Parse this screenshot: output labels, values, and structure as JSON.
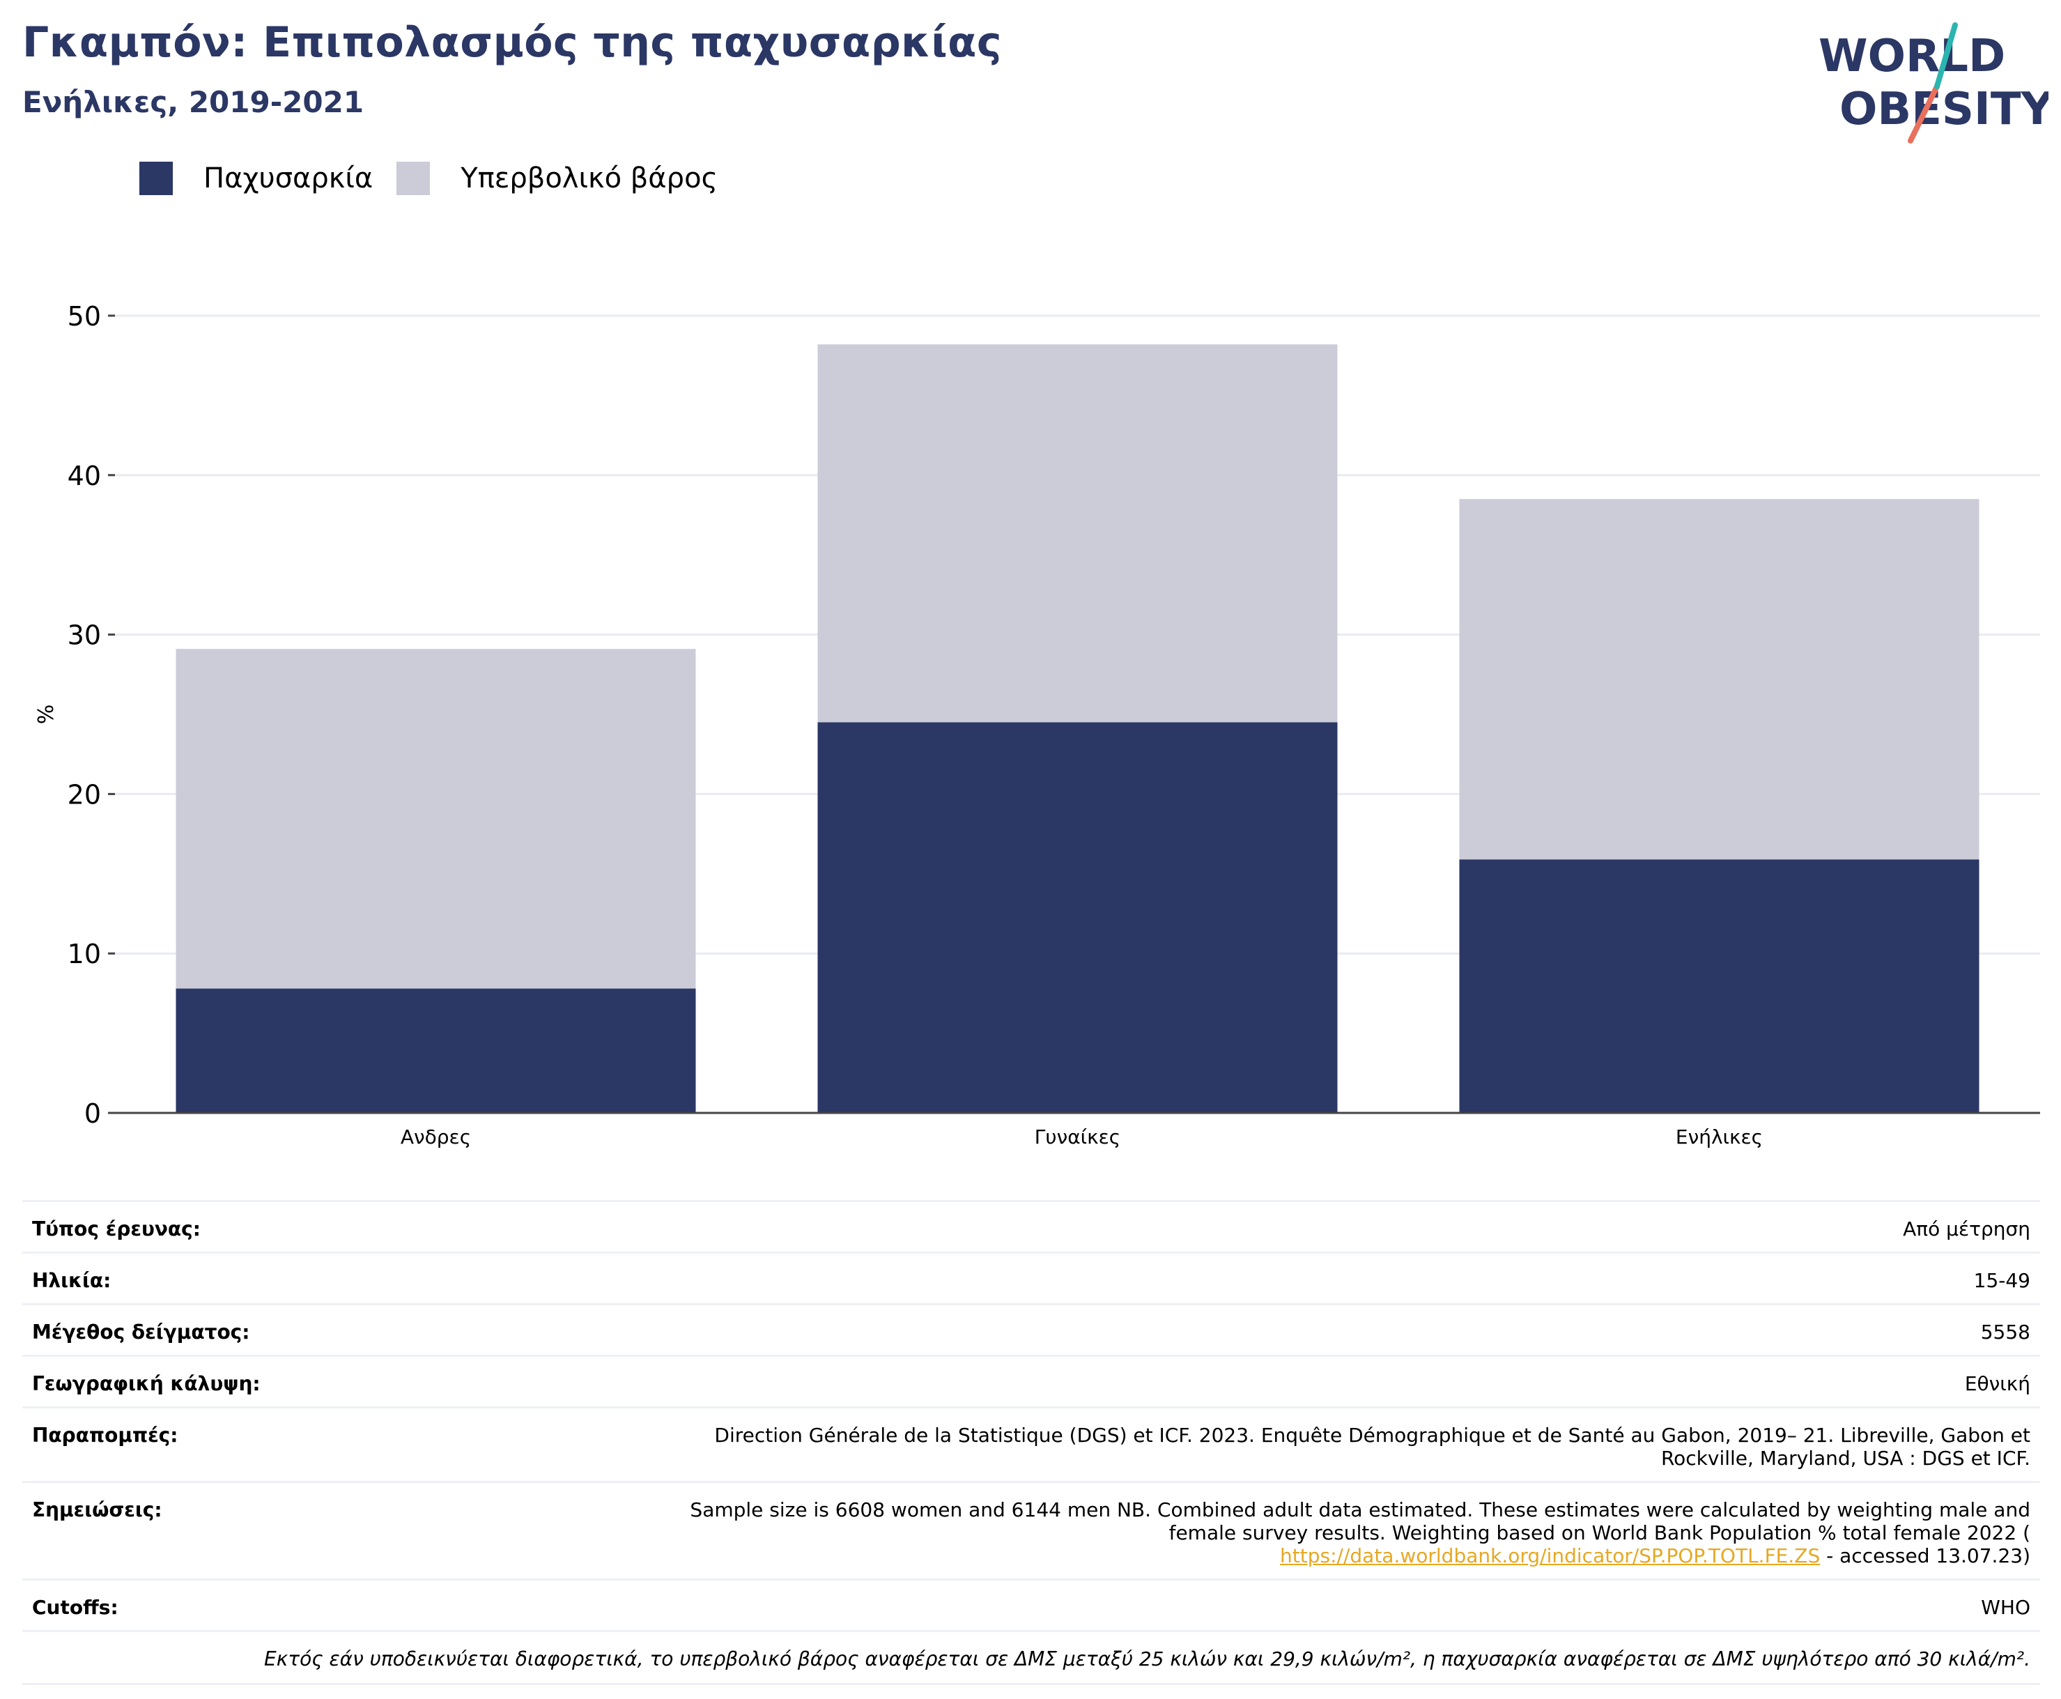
{
  "header": {
    "title": "Γκαμπόν: Επιπολασμός της παχυσαρκίας",
    "subtitle": "Ενήλικες, 2019-2021"
  },
  "logo": {
    "line1": "WORLD",
    "line2": "OBESITY",
    "icon": "world-obesity-logo"
  },
  "colors": {
    "obesity": "#2b3764",
    "overweight": "#cbccd8",
    "accent_teal": "#2bb5b0",
    "accent_red": "#e8705d",
    "link": "#e6a823"
  },
  "chart_data": {
    "type": "bar",
    "stacked": true,
    "categories": [
      "Ανδρες",
      "Γυναίκες",
      "Ενήλικες"
    ],
    "series": [
      {
        "name": "Παχυσαρκία",
        "color": "#2b3764",
        "values": [
          7.8,
          24.5,
          15.9
        ]
      },
      {
        "name": "Υπερβολικό βάρος",
        "color": "#cbccd8",
        "values": [
          21.3,
          23.7,
          22.6
        ]
      }
    ],
    "ylabel": "%",
    "ylim": [
      0,
      50
    ],
    "yticks": [
      0,
      10,
      20,
      30,
      40,
      50
    ],
    "grid": true,
    "legend_position": "top-left"
  },
  "info": {
    "rows": [
      {
        "label": "Τύπος έρευνας:",
        "value": "Από μέτρηση"
      },
      {
        "label": "Ηλικία:",
        "value": "15-49"
      },
      {
        "label": "Μέγεθος δείγματος:",
        "value": "5558"
      },
      {
        "label": "Γεωγραφική κάλυψη:",
        "value": "Εθνική"
      },
      {
        "label": "Παραπομπές:",
        "value_line1": "Direction Générale de la Statistique (DGS) et ICF. 2023. Enquête Démographique et de Santé au Gabon, 2019– 21. Libreville, Gabon et",
        "value_line2": "Rockville, Maryland, USA : DGS et ICF."
      },
      {
        "label": "Σημειώσεις:",
        "value_line1": "Sample size is 6608 women and 6144 men NB. Combined adult data estimated. These estimates were calculated by weighting male and",
        "value_line2": "female survey results. Weighting based on World Bank Population % total female 2022 (",
        "link": "https://data.worldbank.org/indicator/SP.POP.TOTL.FE.ZS",
        "value_after_link": " - accessed 13.07.23)"
      },
      {
        "label": "Cutoffs:",
        "value": "WHO"
      }
    ],
    "footnote": "Εκτός εάν υποδεικνύεται διαφορετικά, το υπερβολικό βάρος αναφέρεται σε ΔΜΣ μεταξύ 25 κιλών και 29,9 κιλών/m², η παχυσαρκία αναφέρεται σε ΔΜΣ υψηλότερο από 30 κιλά/m²."
  }
}
